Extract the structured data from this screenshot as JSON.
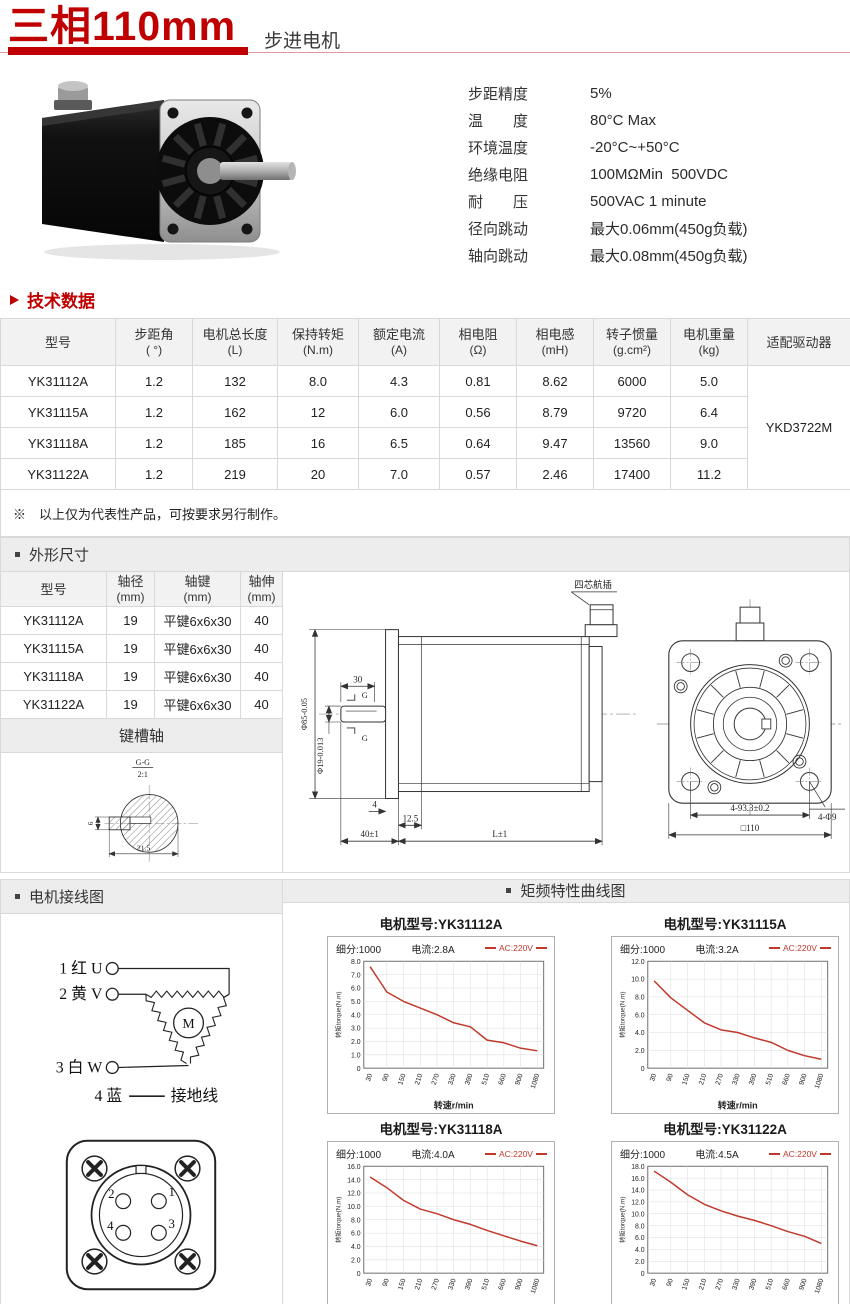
{
  "colors": {
    "accent": "#c00000",
    "curve": "#c0392b",
    "section_bg": "#ededed",
    "border": "#d9d9d9"
  },
  "header": {
    "title": "三相110mm",
    "subtitle": "步进电机"
  },
  "specs": {
    "items": [
      {
        "label": "步距精度",
        "value": "5%"
      },
      {
        "label": "温　　度",
        "value": "80°C Max"
      },
      {
        "label": "环境温度",
        "value": "-20°C~+50°C"
      },
      {
        "label": "绝缘电阻",
        "value": "100MΩMin  500VDC"
      },
      {
        "label": "耐　　压",
        "value": "500VAC 1 minute"
      },
      {
        "label": "径向跳动",
        "value": "最大0.06mm(450g负载)"
      },
      {
        "label": "轴向跳动",
        "value": "最大0.08mm(450g负载)"
      }
    ]
  },
  "tech_table": {
    "title": "技术数据",
    "headers": [
      {
        "main": "型号",
        "sub": ""
      },
      {
        "main": "步距角",
        "sub": "( °)"
      },
      {
        "main": "电机总长度",
        "sub": "(L)"
      },
      {
        "main": "保持转矩",
        "sub": "(N.m)"
      },
      {
        "main": "额定电流",
        "sub": "(A)"
      },
      {
        "main": "相电阻",
        "sub": "(Ω)"
      },
      {
        "main": "相电感",
        "sub": "(mH)"
      },
      {
        "main": "转子惯量",
        "sub": "(g.cm²)"
      },
      {
        "main": "电机重量",
        "sub": "(kg)"
      },
      {
        "main": "适配驱动器",
        "sub": ""
      }
    ],
    "rows": [
      [
        "YK31112A",
        "1.2",
        "132",
        "8.0",
        "4.3",
        "0.81",
        "8.62",
        "6000",
        "5.0"
      ],
      [
        "YK31115A",
        "1.2",
        "162",
        "12",
        "6.0",
        "0.56",
        "8.79",
        "9720",
        "6.4"
      ],
      [
        "YK31118A",
        "1.2",
        "185",
        "16",
        "6.5",
        "0.64",
        "9.47",
        "13560",
        "9.0"
      ],
      [
        "YK31122A",
        "1.2",
        "219",
        "20",
        "7.0",
        "0.57",
        "2.46",
        "17400",
        "11.2"
      ]
    ],
    "driver": "YKD3722M",
    "note": "※　以上仅为代表性产品，可按要求另行制作。"
  },
  "dim_table": {
    "title": "外形尺寸",
    "headers": [
      {
        "main": "型号",
        "sub": ""
      },
      {
        "main": "轴径",
        "sub": "(mm)"
      },
      {
        "main": "轴键",
        "sub": "(mm)"
      },
      {
        "main": "轴伸",
        "sub": "(mm)"
      }
    ],
    "rows": [
      [
        "YK31112A",
        "19",
        "平键6x6x30",
        "40"
      ],
      [
        "YK31115A",
        "19",
        "平键6x6x30",
        "40"
      ],
      [
        "YK31118A",
        "19",
        "平键6x6x30",
        "40"
      ],
      [
        "YK31122A",
        "19",
        "平键6x6x30",
        "40"
      ]
    ],
    "keyway_title": "键槽轴"
  },
  "drawings": {
    "plug_label": "四芯航插",
    "side": {
      "dim_key_len": "30",
      "g_top": "G",
      "g_bottom": "G",
      "dim_flange_dia": "Φ85-0.05",
      "dim_shaft_dia": "Φ19-0.013",
      "dim_plate": "4",
      "dim_pilot": "12.5",
      "dim_front": "40±1",
      "dim_length": "L±1"
    },
    "front": {
      "dim_holes": "4-93.3±0.2",
      "dim_square": "□110",
      "dim_hole_dia": "4-Φ9"
    },
    "keyway": {
      "section": "G-G",
      "scale": "2:1",
      "dim_h": "6",
      "dim_w": "21.5"
    }
  },
  "wiring": {
    "title": "电机接线图",
    "lines": [
      "1 红 U",
      "2 黄 V",
      "3 白 W"
    ],
    "ground_label": "4 蓝",
    "ground_text": "接地线",
    "motor": "M"
  },
  "connector": {
    "pin1": "1",
    "pin2": "2",
    "pin3": "3",
    "pin4": "4"
  },
  "charts_section": {
    "title": "矩频特性曲线图",
    "model_prefix": "电机型号:",
    "y_label": "转矩torque(N.m)",
    "x_label": "转速r/min"
  },
  "chart_data": [
    {
      "type": "line",
      "model": "YK31112A",
      "title": "电机型号:YK31112A",
      "subdivision": "细分:1000",
      "current": "电流:2.8A",
      "legend": "AC:220V",
      "xlabel": "转速r/min",
      "ylabel": "转矩torque(N.m)",
      "x": [
        30,
        90,
        150,
        210,
        270,
        330,
        390,
        510,
        660,
        900,
        1080
      ],
      "torque": [
        7.6,
        5.7,
        5.0,
        4.5,
        4.0,
        3.4,
        3.1,
        2.1,
        1.9,
        1.5,
        1.3
      ],
      "ylim": [
        0,
        8
      ],
      "y_step": 1
    },
    {
      "type": "line",
      "model": "YK31115A",
      "title": "电机型号:YK31115A",
      "subdivision": "细分:1000",
      "current": "电流:3.2A",
      "legend": "AC:220V",
      "xlabel": "转速r/min",
      "ylabel": "转矩torque(N.m)",
      "x": [
        30,
        90,
        150,
        210,
        270,
        330,
        390,
        510,
        660,
        900,
        1080
      ],
      "torque": [
        9.8,
        7.9,
        6.5,
        5.1,
        4.3,
        4.0,
        3.4,
        2.9,
        2.0,
        1.4,
        1.0
      ],
      "ylim": [
        0,
        12
      ],
      "y_step": 2
    },
    {
      "type": "line",
      "model": "YK31118A",
      "title": "电机型号:YK31118A",
      "subdivision": "细分:1000",
      "current": "电流:4.0A",
      "legend": "AC:220V",
      "xlabel": "转速r/min",
      "ylabel": "转矩torque(N.m)",
      "x": [
        30,
        90,
        150,
        210,
        270,
        330,
        390,
        510,
        660,
        900,
        1080
      ],
      "torque": [
        14.4,
        12.8,
        10.9,
        9.6,
        8.9,
        8.0,
        7.3,
        6.4,
        5.6,
        4.8,
        4.1
      ],
      "ylim": [
        0,
        16
      ],
      "y_step": 2
    },
    {
      "type": "line",
      "model": "YK31122A",
      "title": "电机型号:YK31122A",
      "subdivision": "细分:1000",
      "current": "电流:4.5A",
      "legend": "AC:220V",
      "xlabel": "转速r/min",
      "ylabel": "转矩torque(N.m)",
      "x": [
        30,
        90,
        150,
        210,
        270,
        330,
        390,
        510,
        660,
        900,
        1080
      ],
      "torque": [
        17.2,
        15.3,
        13.2,
        11.6,
        10.5,
        9.6,
        8.9,
        8.0,
        7.0,
        6.2,
        5.0
      ],
      "ylim": [
        0,
        18
      ],
      "y_step": 2
    }
  ]
}
